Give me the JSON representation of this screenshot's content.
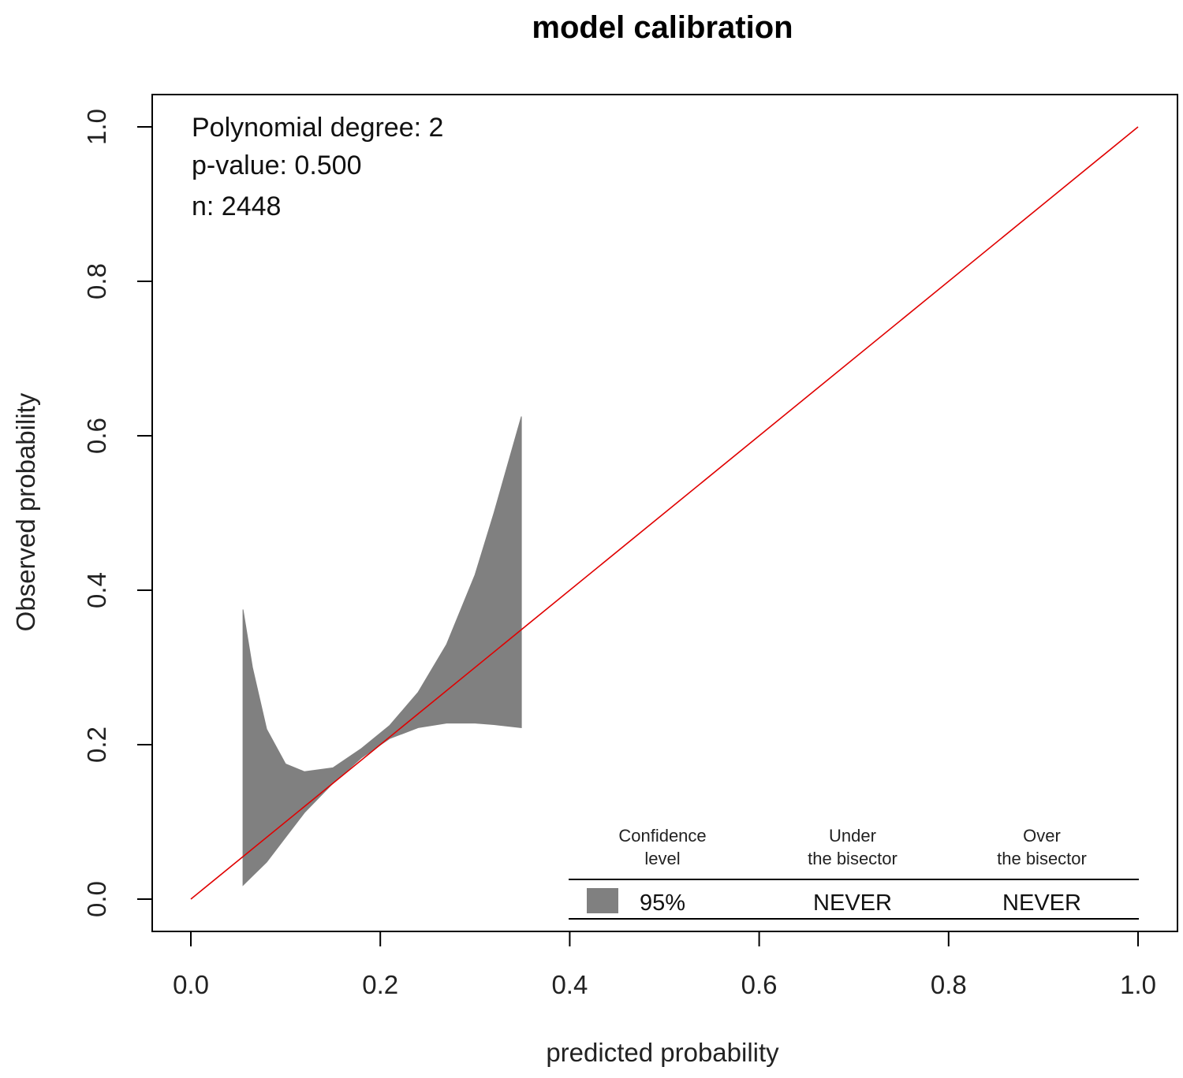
{
  "chart_data": {
    "type": "area",
    "title": "model calibration",
    "xlabel": "predicted probability",
    "ylabel": "Observed probability",
    "xlim": [
      0,
      1
    ],
    "ylim": [
      0,
      1
    ],
    "xticks": [
      "0.0",
      "0.2",
      "0.4",
      "0.6",
      "0.8",
      "1.0"
    ],
    "yticks": [
      "0.0",
      "0.2",
      "0.4",
      "0.6",
      "0.8",
      "1.0"
    ],
    "xtick_values": [
      0,
      0.2,
      0.4,
      0.6,
      0.8,
      1.0
    ],
    "ytick_values": [
      0,
      0.2,
      0.4,
      0.6,
      0.8,
      1.0
    ],
    "annotations": [
      "Polynomial degree: 2",
      "p-value: 0.500",
      "n: 2448"
    ],
    "bisector": {
      "color": "#e00000",
      "x": [
        0,
        1
      ],
      "y": [
        0,
        1
      ]
    },
    "confidence_band": {
      "color": "#808080",
      "x": [
        0.055,
        0.065,
        0.08,
        0.1,
        0.12,
        0.15,
        0.18,
        0.21,
        0.24,
        0.27,
        0.3,
        0.32,
        0.349
      ],
      "lower": [
        0.018,
        0.03,
        0.048,
        0.08,
        0.112,
        0.15,
        0.183,
        0.208,
        0.222,
        0.228,
        0.228,
        0.226,
        0.222
      ],
      "upper": [
        0.375,
        0.3,
        0.22,
        0.175,
        0.165,
        0.17,
        0.195,
        0.225,
        0.268,
        0.33,
        0.42,
        0.5,
        0.625
      ]
    },
    "legend": {
      "position": "bottom-right",
      "headers": [
        [
          "Confidence",
          "level"
        ],
        [
          "Under",
          "the bisector"
        ],
        [
          "Over",
          "the bisector"
        ]
      ],
      "rows": [
        {
          "level": "95%",
          "under": "NEVER",
          "over": "NEVER",
          "swatch": "#808080"
        }
      ]
    }
  }
}
